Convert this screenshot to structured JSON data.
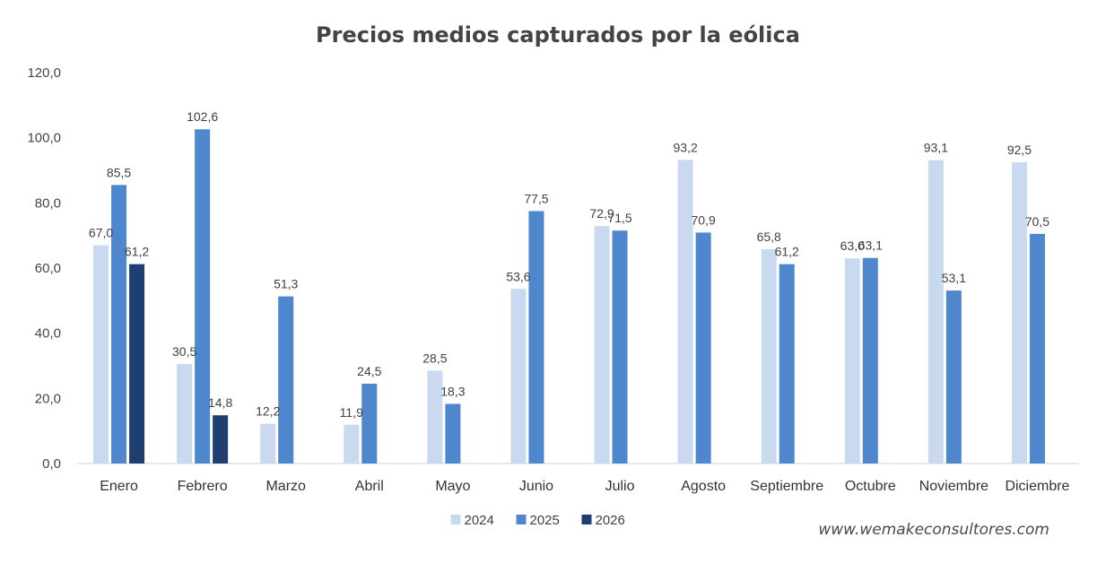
{
  "chart_data": {
    "type": "bar",
    "title": "Precios medios capturados por la eólica",
    "xlabel": "",
    "ylabel": "",
    "ylim": [
      0,
      120
    ],
    "yticks": [
      "0,0",
      "20,0",
      "40,0",
      "60,0",
      "80,0",
      "100,0",
      "120,0"
    ],
    "grid": false,
    "legend_position": "bottom",
    "categories": [
      "Enero",
      "Febrero",
      "Marzo",
      "Abril",
      "Mayo",
      "Junio",
      "Julio",
      "Agosto",
      "Septiembre",
      "Octubre",
      "Noviembre",
      "Diciembre"
    ],
    "series": [
      {
        "name": "2024",
        "color": "#c9d9f0",
        "values": [
          67.0,
          30.5,
          12.2,
          11.9,
          28.5,
          53.6,
          72.9,
          93.2,
          65.8,
          63.0,
          93.1,
          92.5
        ],
        "labels": [
          "67,0",
          "30,5",
          "12,2",
          "11,9",
          "28,5",
          "53,6",
          "72,9",
          "93,2",
          "65,8",
          "63,0",
          "93,1",
          "92,5"
        ]
      },
      {
        "name": "2025",
        "color": "#4f87cf",
        "values": [
          85.5,
          102.6,
          51.3,
          24.5,
          18.3,
          77.5,
          71.5,
          70.9,
          61.2,
          63.1,
          53.1,
          70.5
        ],
        "labels": [
          "85,5",
          "102,6",
          "51,3",
          "24,5",
          "18,3",
          "77,5",
          "71,5",
          "70,9",
          "61,2",
          "63,1",
          "53,1",
          "70,5"
        ]
      },
      {
        "name": "2026",
        "color": "#1f3f73",
        "values": [
          61.2,
          14.8,
          null,
          null,
          null,
          null,
          null,
          null,
          null,
          null,
          null,
          null
        ],
        "labels": [
          "61,2",
          "14,8",
          null,
          null,
          null,
          null,
          null,
          null,
          null,
          null,
          null,
          null
        ]
      }
    ]
  },
  "watermark": "www.wemakeconsultores.com"
}
